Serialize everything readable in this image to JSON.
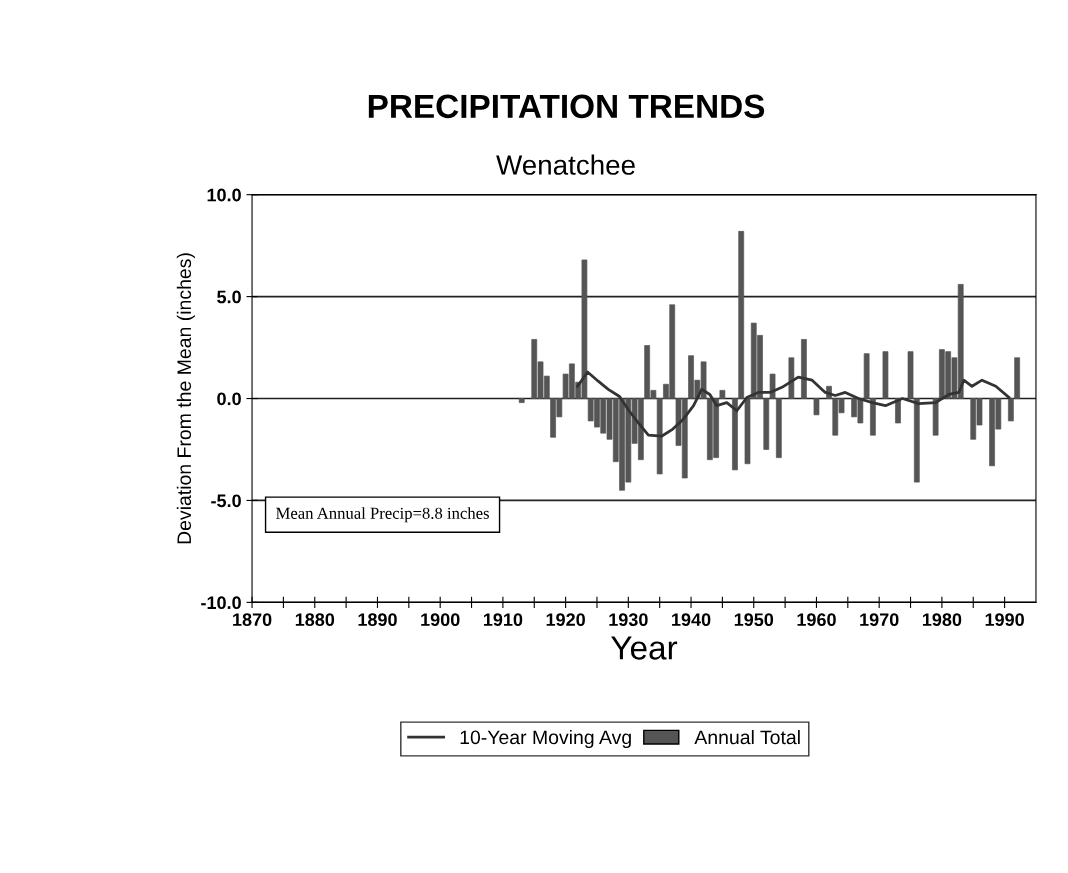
{
  "chart_data": {
    "type": "bar",
    "title": "PRECIPITATION TRENDS",
    "subtitle": "Wenatchee",
    "xlabel": "Year",
    "ylabel": "Deviation From the Mean (inches)",
    "annotations": [
      "Mean Annual Precip=8.8 inches"
    ],
    "xlim": [
      1870,
      1995
    ],
    "xticks": [
      1870,
      {
        "value": 1875,
        "label": null
      },
      1880,
      {
        "value": 1885,
        "label": null
      },
      1890,
      {
        "value": 1895,
        "label": null
      },
      1900,
      {
        "value": 1905,
        "label": null
      },
      1910,
      {
        "value": 1915,
        "label": null
      },
      1920,
      {
        "value": 1925,
        "label": null
      },
      1930,
      {
        "value": 1935,
        "label": null
      },
      1940,
      {
        "value": 1945,
        "label": null
      },
      1950,
      {
        "value": 1955,
        "label": null
      },
      1960,
      {
        "value": 1965,
        "label": null
      },
      1970,
      {
        "value": 1975,
        "label": null
      },
      1980,
      {
        "value": 1985,
        "label": null
      },
      1990
    ],
    "ylim": [
      -10,
      10
    ],
    "yticks": [
      {
        "value": -10,
        "label": "-10.0"
      },
      {
        "value": -5,
        "label": "-5.0"
      },
      {
        "value": 0,
        "label": "0.0"
      },
      {
        "value": 5,
        "label": "5.0"
      },
      {
        "value": 10,
        "label": "10.0"
      }
    ],
    "grid": "y",
    "legend": "bottom",
    "series": [
      {
        "name": "10-Year Moving Avg",
        "type": "line",
        "color": "#333333",
        "x": [
          1921.9,
          1923.5,
          1925.2,
          1926.8,
          1928.6,
          1930,
          1931.6,
          1933.2,
          1935.3,
          1937.1,
          1938.8,
          1940.4,
          1941.7,
          1943,
          1944.1,
          1945.7,
          1947.3,
          1948.9,
          1950.7,
          1952.6,
          1954.5,
          1957.1,
          1959.3,
          1961.4,
          1963,
          1964.6,
          1966.7,
          1968.9,
          1971,
          1973.7,
          1976.3,
          1979,
          1981.1,
          1982.7,
          1983.5,
          1984.8,
          1986.4,
          1988.6,
          1990.7
        ],
        "values": [
          0.6,
          1.3,
          0.85,
          0.45,
          0.1,
          -0.55,
          -1.2,
          -1.8,
          -1.85,
          -1.5,
          -1.0,
          -0.35,
          0.45,
          0.2,
          -0.35,
          -0.2,
          -0.6,
          0.05,
          0.3,
          0.3,
          0.55,
          1.05,
          0.9,
          0.3,
          0.15,
          0.3,
          0,
          -0.2,
          -0.35,
          0,
          -0.25,
          -0.2,
          0.2,
          0.3,
          0.9,
          0.6,
          0.9,
          0.6,
          0.05
        ]
      },
      {
        "name": "Annual Total",
        "color": "#555555",
        "x": [
          1913,
          1915,
          1916,
          1917,
          1918,
          1919,
          1920,
          1921,
          1922,
          1923,
          1924,
          1925,
          1926,
          1927,
          1928,
          1929,
          1930,
          1931,
          1932,
          1933,
          1934,
          1935,
          1936,
          1937,
          1938,
          1939,
          1940,
          1941,
          1942,
          1943,
          1944,
          1945,
          1947,
          1948,
          1949,
          1950,
          1951,
          1952,
          1953,
          1954,
          1956,
          1958,
          1960,
          1962,
          1963,
          1964,
          1966,
          1967,
          1968,
          1969,
          1971,
          1973,
          1975,
          1976,
          1979,
          1980,
          1981,
          1982,
          1983,
          1985,
          1986,
          1988,
          1989,
          1991,
          1992
        ],
        "values": [
          -0.2,
          2.9,
          1.8,
          1.1,
          -1.9,
          -0.9,
          1.2,
          1.7,
          0.8,
          6.8,
          -1.1,
          -1.4,
          -1.7,
          -2.0,
          -3.1,
          -4.5,
          -4.1,
          -2.2,
          -3.0,
          2.6,
          0.4,
          -3.7,
          0.7,
          4.6,
          -2.3,
          -3.9,
          2.1,
          0.9,
          1.8,
          -3.0,
          -2.9,
          0.4,
          -3.5,
          8.2,
          -3.2,
          3.7,
          3.1,
          -2.5,
          1.2,
          -2.9,
          2.0,
          2.9,
          -0.8,
          0.6,
          -1.8,
          -0.7,
          -0.9,
          -1.2,
          2.2,
          -1.8,
          2.3,
          -1.2,
          2.3,
          -4.1,
          -1.8,
          2.4,
          2.3,
          2.0,
          5.6,
          -2.0,
          -1.3,
          -3.3,
          -1.5,
          -1.1,
          2.0
        ]
      }
    ]
  }
}
